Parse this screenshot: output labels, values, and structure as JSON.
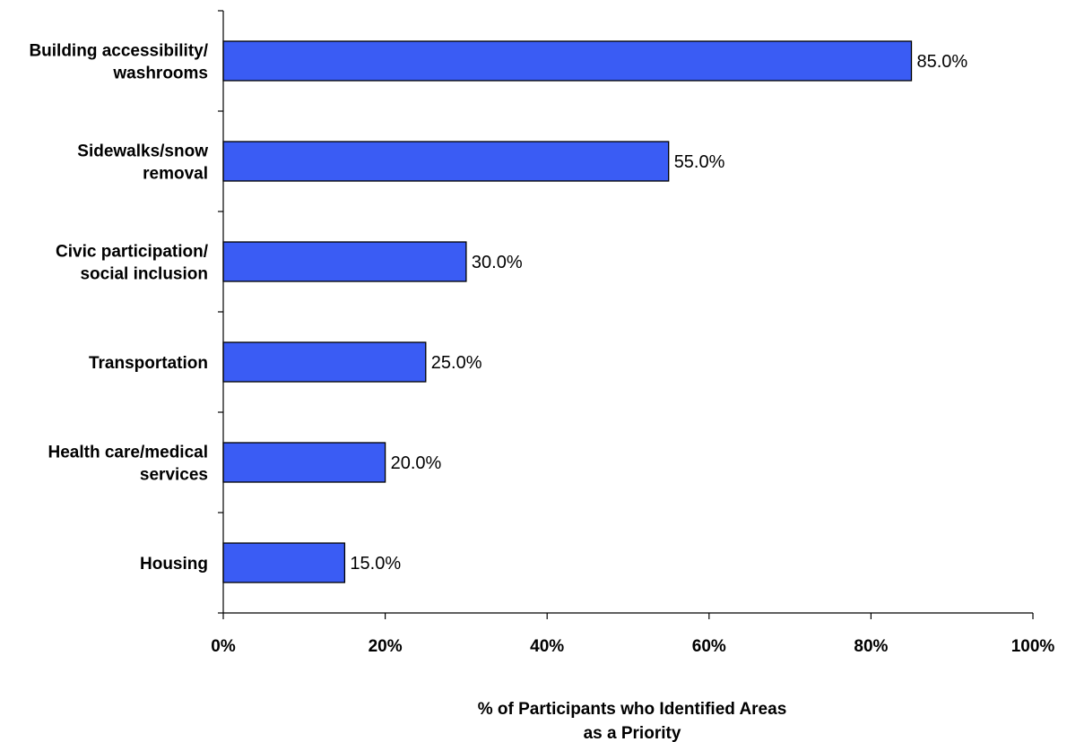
{
  "chart_data": {
    "type": "bar",
    "orientation": "horizontal",
    "categories": [
      [
        "Building accessibility/",
        "washrooms"
      ],
      [
        "Sidewalks/snow",
        "removal"
      ],
      [
        "Civic participation/",
        "social inclusion"
      ],
      [
        "Transportation"
      ],
      [
        "Health care/medical",
        "services"
      ],
      [
        "Housing"
      ]
    ],
    "values": [
      85.0,
      55.0,
      30.0,
      25.0,
      20.0,
      15.0
    ],
    "data_labels": [
      "85.0%",
      "55.0%",
      "30.0%",
      "25.0%",
      "20.0%",
      "15.0%"
    ],
    "x_ticks": [
      0,
      20,
      40,
      60,
      80,
      100
    ],
    "x_tick_labels": [
      "0%",
      "20%",
      "40%",
      "60%",
      "80%",
      "100%"
    ],
    "xlabel": [
      "% of Participants who Identified Areas",
      "as a Priority"
    ],
    "ylabel": "",
    "title": "",
    "xlim": [
      0,
      100
    ],
    "grid": false,
    "legend": "none",
    "colors": {
      "bar_fill": "#3A5CF4",
      "bar_stroke": "#000000",
      "axis": "#000000"
    }
  }
}
